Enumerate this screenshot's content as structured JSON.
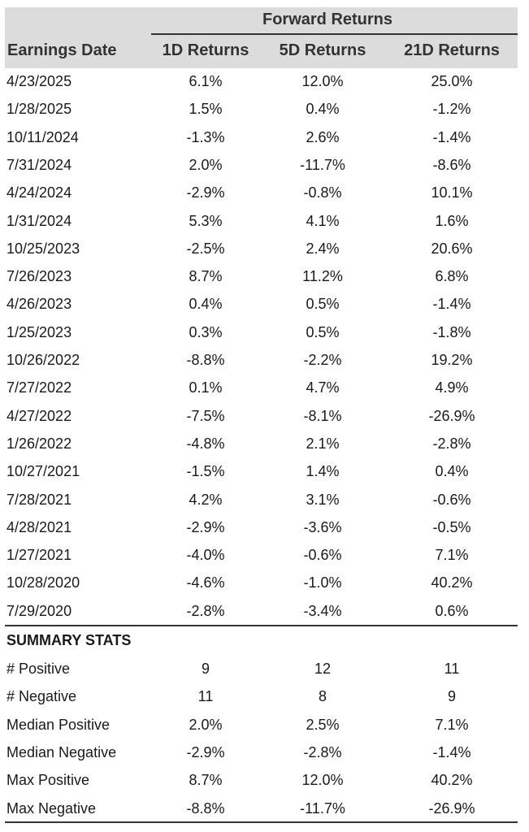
{
  "header": {
    "group_title": "Forward Returns",
    "columns": [
      "Earnings Date",
      "1D Returns",
      "5D Returns",
      "21D Returns"
    ]
  },
  "table": {
    "rows": [
      [
        "4/23/2025",
        "6.1%",
        "12.0%",
        "25.0%"
      ],
      [
        "1/28/2025",
        "1.5%",
        "0.4%",
        "-1.2%"
      ],
      [
        "10/11/2024",
        "-1.3%",
        "2.6%",
        "-1.4%"
      ],
      [
        "7/31/2024",
        "2.0%",
        "-11.7%",
        "-8.6%"
      ],
      [
        "4/24/2024",
        "-2.9%",
        "-0.8%",
        "10.1%"
      ],
      [
        "1/31/2024",
        "5.3%",
        "4.1%",
        "1.6%"
      ],
      [
        "10/25/2023",
        "-2.5%",
        "2.4%",
        "20.6%"
      ],
      [
        "7/26/2023",
        "8.7%",
        "11.2%",
        "6.8%"
      ],
      [
        "4/26/2023",
        "0.4%",
        "0.5%",
        "-1.4%"
      ],
      [
        "1/25/2023",
        "0.3%",
        "0.5%",
        "-1.8%"
      ],
      [
        "10/26/2022",
        "-8.8%",
        "-2.2%",
        "19.2%"
      ],
      [
        "7/27/2022",
        "0.1%",
        "4.7%",
        "4.9%"
      ],
      [
        "4/27/2022",
        "-7.5%",
        "-8.1%",
        "-26.9%"
      ],
      [
        "1/26/2022",
        "-4.8%",
        "2.1%",
        "-2.8%"
      ],
      [
        "10/27/2021",
        "-1.5%",
        "1.4%",
        "0.4%"
      ],
      [
        "7/28/2021",
        "4.2%",
        "3.1%",
        "-0.6%"
      ],
      [
        "4/28/2021",
        "-2.9%",
        "-3.6%",
        "-0.5%"
      ],
      [
        "1/27/2021",
        "-4.0%",
        "-0.6%",
        "7.1%"
      ],
      [
        "10/28/2020",
        "-4.6%",
        "-1.0%",
        "40.2%"
      ],
      [
        "7/29/2020",
        "-2.8%",
        "-3.4%",
        "0.6%"
      ]
    ]
  },
  "summary": {
    "title": "SUMMARY STATS",
    "rows": [
      [
        "# Positive",
        "9",
        "12",
        "11"
      ],
      [
        "# Negative",
        "11",
        "8",
        "9"
      ],
      [
        "Median Positive",
        "2.0%",
        "2.5%",
        "7.1%"
      ],
      [
        "Median Negative",
        "-2.9%",
        "-2.8%",
        "-1.4%"
      ],
      [
        "Max Positive",
        "8.7%",
        "12.0%",
        "40.2%"
      ],
      [
        "Max Negative",
        "-8.8%",
        "-11.7%",
        "-26.9%"
      ]
    ]
  }
}
